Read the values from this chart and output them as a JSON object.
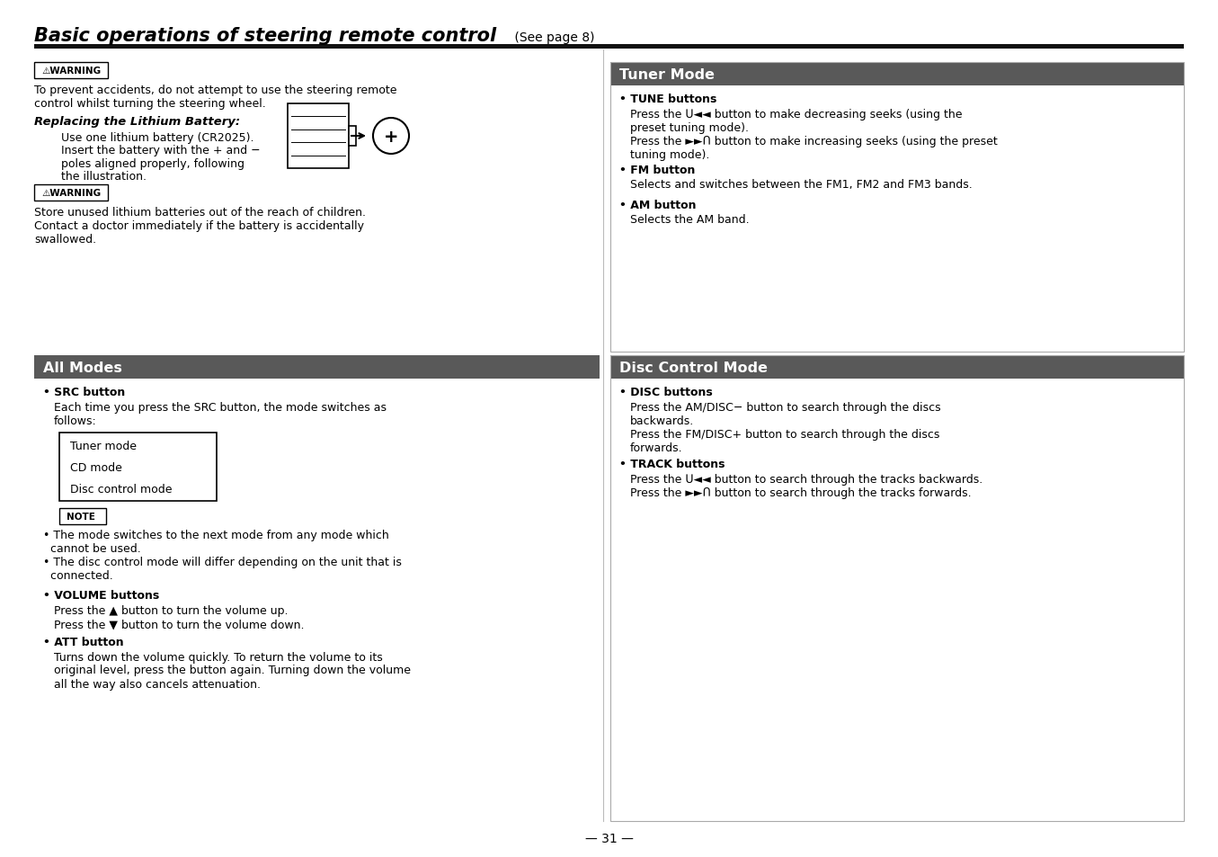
{
  "page_bg": "#ffffff",
  "title_bold_italic": "Basic operations of steering remote control",
  "title_normal": " (See page 8)",
  "page_number": "— 31 —",
  "section_header_color": "#595959",
  "warning_symbol": "⚠WARNING",
  "note_label": "NOTE",
  "left_sections": {
    "warning1_text": "To prevent accidents, do not attempt to use the steering remote\ncontrol whilst turning the steering wheel.",
    "battery_heading": "Replacing the Lithium Battery:",
    "battery_text1": "Use one lithium battery (CR2025).",
    "battery_text2": "Insert the battery with the + and −",
    "battery_text3": "poles aligned properly, following",
    "battery_text4": "the illustration.",
    "warning2_text": "Store unused lithium batteries out of the reach of children.\nContact a doctor immediately if the battery is accidentally\nswallowed.",
    "all_modes_title": "All Modes",
    "src_bold": "SRC button",
    "src_text": "Each time you press the SRC button, the mode switches as\nfollows:",
    "mode_list": [
      "Tuner mode",
      "CD mode",
      "Disc control mode"
    ],
    "note_bullets": [
      "The mode switches to the next mode from any mode which\n  cannot be used.",
      "The disc control mode will differ depending on the unit that is\n  connected."
    ],
    "volume_bold": "VOLUME buttons",
    "volume_text": "Press the ▲ button to turn the volume up.\nPress the ▼ button to turn the volume down.",
    "att_bold": "ATT button",
    "att_text": "Turns down the volume quickly. To return the volume to its\noriginal level, press the button again. Turning down the volume\nall the way also cancels attenuation."
  },
  "right_sections": {
    "tuner_title": "Tuner Mode",
    "tune_bold": "TUNE buttons",
    "tune_text": "Press the ᑌ◄◄ button to make decreasing seeks (using the\npreset tuning mode).\nPress the ►►ᑎ button to make increasing seeks (using the preset\ntuning mode).",
    "fm_bold": "FM button",
    "fm_text": "Selects and switches between the FM1, FM2 and FM3 bands.",
    "am_bold": "AM button",
    "am_text": "Selects the AM band.",
    "disc_title": "Disc Control Mode",
    "disc_bold": "DISC buttons",
    "disc_text": "Press the AM/DISC− button to search through the discs\nbackwards.\nPress the FM/DISC+ button to search through the discs\nforwards.",
    "track_bold": "TRACK buttons",
    "track_text": "Press the ᑌ◄◄ button to search through the tracks backwards.\nPress the ►►ᑎ button to search through the tracks forwards."
  }
}
